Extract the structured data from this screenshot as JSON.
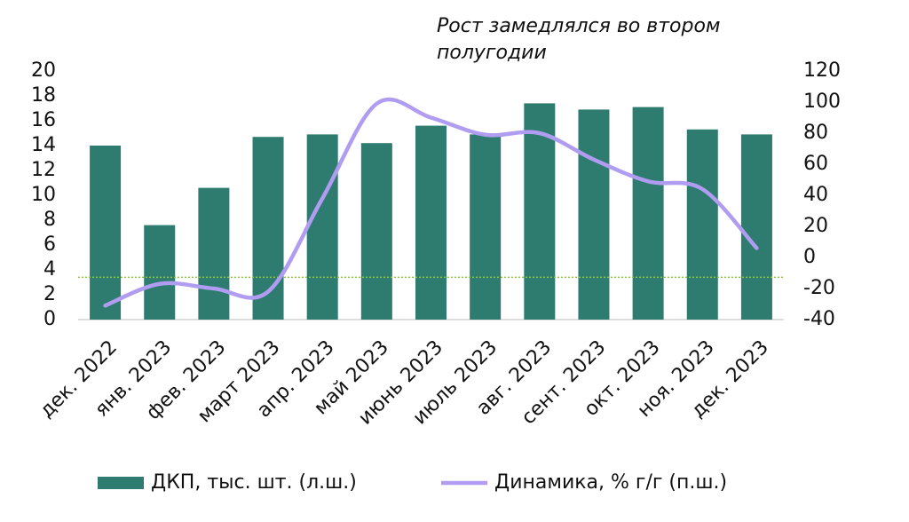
{
  "chart_data": {
    "type": "bar-line",
    "annotation": [
      "Рост замедлялся во втором",
      "полугодии"
    ],
    "categories": [
      "дек. 2022",
      "янв. 2023",
      "фев. 2023",
      "март 2023",
      "апр. 2023",
      "май 2023",
      "июнь 2023",
      "июль 2023",
      "авг. 2023",
      "сент. 2023",
      "окт. 2023",
      "ноя. 2023",
      "дек. 2023"
    ],
    "series": [
      {
        "name": "ДКП, тыс. шт. (л.ш.)",
        "type": "bar",
        "color": "#2e7b70",
        "values": [
          14.0,
          7.6,
          10.6,
          14.7,
          14.9,
          14.2,
          15.6,
          14.9,
          17.4,
          16.9,
          17.1,
          15.3,
          14.9
        ]
      },
      {
        "name": "Динамика, % г/г (п.ш.)",
        "type": "line",
        "axis": "y2",
        "color": "#b09cf0",
        "values": [
          -31,
          -17,
          -20,
          -22,
          38,
          99,
          90,
          79,
          80,
          63,
          49,
          44,
          6
        ]
      }
    ],
    "ylim": [
      0,
      20
    ],
    "yticks": [
      0,
      2,
      4,
      6,
      8,
      10,
      12,
      14,
      16,
      18,
      20
    ],
    "y2lim": [
      -40,
      120
    ],
    "y2ticks": [
      -40,
      -20,
      0,
      20,
      40,
      60,
      80,
      100,
      120
    ],
    "reference_line": {
      "value": 3.4,
      "color": "#8cc63f"
    },
    "legend": "bottom"
  }
}
